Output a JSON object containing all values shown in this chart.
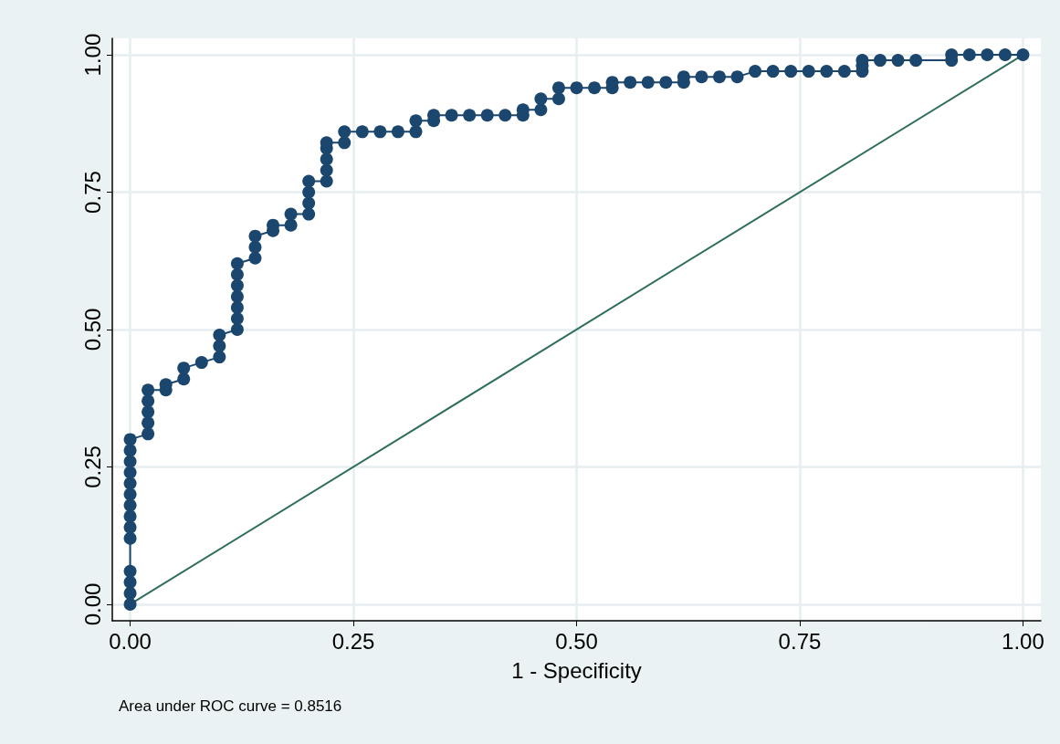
{
  "chart_data": {
    "type": "line",
    "xlabel": "1 - Specificity",
    "annotations": [
      "Area under ROC curve = 0.8516"
    ],
    "xlim": [
      -0.02,
      1.02
    ],
    "ylim": [
      -0.03,
      1.03
    ],
    "xticks": [
      {
        "value": 0,
        "label": "0.00"
      },
      {
        "value": 0.25,
        "label": "0.25"
      },
      {
        "value": 0.5,
        "label": "0.50"
      },
      {
        "value": 0.75,
        "label": "0.75"
      },
      {
        "value": 1,
        "label": "1.00"
      }
    ],
    "yticks": [
      {
        "value": 0,
        "label": "0.00"
      },
      {
        "value": 0.25,
        "label": "0.25"
      },
      {
        "value": 0.5,
        "label": "0.50"
      },
      {
        "value": 0.75,
        "label": "0.75"
      },
      {
        "value": 1,
        "label": "1.00"
      }
    ],
    "grid": true,
    "line_style": "solid",
    "series": [
      {
        "color": "#1b466e",
        "marker": "circle",
        "x": [
          0,
          0,
          0,
          0,
          0,
          0,
          0,
          0,
          0,
          0,
          0,
          0,
          0,
          0,
          0.02,
          0.02,
          0.02,
          0.02,
          0.02,
          0.04,
          0.04,
          0.06,
          0.06,
          0.08,
          0.1,
          0.1,
          0.1,
          0.12,
          0.12,
          0.12,
          0.12,
          0.12,
          0.12,
          0.12,
          0.14,
          0.14,
          0.14,
          0.16,
          0.16,
          0.18,
          0.18,
          0.2,
          0.2,
          0.2,
          0.2,
          0.22,
          0.22,
          0.22,
          0.22,
          0.22,
          0.24,
          0.24,
          0.26,
          0.28,
          0.3,
          0.32,
          0.32,
          0.34,
          0.34,
          0.36,
          0.38,
          0.4,
          0.42,
          0.44,
          0.44,
          0.46,
          0.46,
          0.48,
          0.48,
          0.5,
          0.52,
          0.54,
          0.54,
          0.56,
          0.58,
          0.6,
          0.62,
          0.62,
          0.64,
          0.66,
          0.68,
          0.7,
          0.72,
          0.74,
          0.76,
          0.78,
          0.8,
          0.82,
          0.82,
          0.82,
          0.84,
          0.86,
          0.88,
          0.92,
          0.92,
          0.94,
          0.96,
          0.98,
          1
        ],
        "values": [
          0,
          0.02,
          0.04,
          0.06,
          0.12,
          0.14,
          0.16,
          0.18,
          0.2,
          0.22,
          0.24,
          0.26,
          0.28,
          0.3,
          0.31,
          0.33,
          0.35,
          0.37,
          0.39,
          0.39,
          0.4,
          0.41,
          0.43,
          0.44,
          0.45,
          0.47,
          0.49,
          0.5,
          0.52,
          0.54,
          0.56,
          0.58,
          0.6,
          0.62,
          0.63,
          0.65,
          0.67,
          0.68,
          0.69,
          0.69,
          0.71,
          0.71,
          0.73,
          0.75,
          0.77,
          0.77,
          0.79,
          0.81,
          0.83,
          0.84,
          0.84,
          0.86,
          0.86,
          0.86,
          0.86,
          0.86,
          0.88,
          0.88,
          0.89,
          0.89,
          0.89,
          0.89,
          0.89,
          0.89,
          0.9,
          0.9,
          0.92,
          0.92,
          0.94,
          0.94,
          0.94,
          0.94,
          0.95,
          0.95,
          0.95,
          0.95,
          0.95,
          0.96,
          0.96,
          0.96,
          0.96,
          0.97,
          0.97,
          0.97,
          0.97,
          0.97,
          0.97,
          0.97,
          0.98,
          0.99,
          0.99,
          0.99,
          0.99,
          0.99,
          1,
          1,
          1,
          1,
          1
        ]
      },
      {
        "color": "#2f6e5e",
        "marker": "none",
        "x": [
          0,
          1
        ],
        "values": [
          0,
          1
        ]
      }
    ]
  }
}
